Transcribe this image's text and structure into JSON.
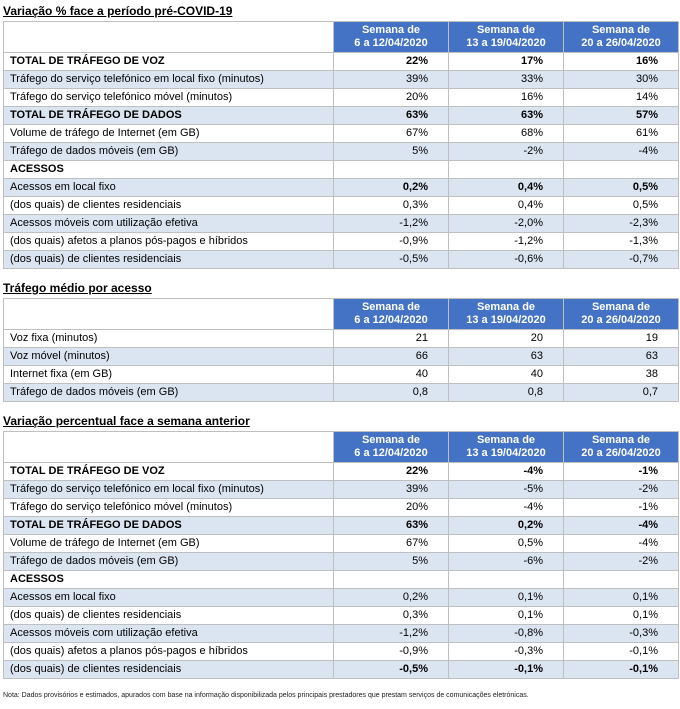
{
  "page": {
    "footnote": "Nota: Dados provisórios e estimados, apurados com base na informação disponibilizada pelos principais prestadores que prestam serviços de comunicações eletrónicas."
  },
  "colors": {
    "header_bg": "#4472C4",
    "header_text": "#FFFFFF",
    "row_alt_bg": "#DBE5F1",
    "border": "#BFBFBF"
  },
  "tables": [
    {
      "title": "Variação % face a período pré-COVID-19",
      "columns": [
        {
          "line1": "Semana de",
          "line2": "6 a 12/04/2020"
        },
        {
          "line1": "Semana de",
          "line2": "13 a 19/04/2020"
        },
        {
          "line1": "Semana de",
          "line2": "20 a 26/04/2020"
        }
      ],
      "rows": [
        {
          "label": "TOTAL DE TRÁFEGO DE VOZ",
          "values": [
            "22%",
            "17%",
            "16%"
          ],
          "label_bold": true,
          "values_bold": true
        },
        {
          "label": "Tráfego do serviço telefónico em local fixo (minutos)",
          "values": [
            "39%",
            "33%",
            "30%"
          ],
          "label_bold": false,
          "values_bold": false
        },
        {
          "label": "Tráfego do serviço telefónico móvel (minutos)",
          "values": [
            "20%",
            "16%",
            "14%"
          ],
          "label_bold": false,
          "values_bold": false
        },
        {
          "label": "TOTAL DE TRÁFEGO DE DADOS",
          "values": [
            "63%",
            "63%",
            "57%"
          ],
          "label_bold": true,
          "values_bold": true
        },
        {
          "label": "Volume de tráfego de Internet (em GB)",
          "values": [
            "67%",
            "68%",
            "61%"
          ],
          "label_bold": false,
          "values_bold": false
        },
        {
          "label": "Tráfego de dados móveis (em GB)",
          "values": [
            "5%",
            "-2%",
            "-4%"
          ],
          "label_bold": false,
          "values_bold": false
        },
        {
          "label": "ACESSOS",
          "values": [
            "",
            "",
            ""
          ],
          "label_bold": true,
          "values_bold": false
        },
        {
          "label": "Acessos em local fixo",
          "values": [
            "0,2%",
            "0,4%",
            "0,5%"
          ],
          "label_bold": false,
          "values_bold": true
        },
        {
          "label": "(dos quais) de clientes residenciais",
          "values": [
            "0,3%",
            "0,4%",
            "0,5%"
          ],
          "label_bold": false,
          "values_bold": false
        },
        {
          "label": "Acessos móveis com utilização efetiva",
          "values": [
            "-1,2%",
            "-2,0%",
            "-2,3%"
          ],
          "label_bold": false,
          "values_bold": false
        },
        {
          "label": "(dos quais) afetos a planos pós-pagos e híbridos",
          "values": [
            "-0,9%",
            "-1,2%",
            "-1,3%"
          ],
          "label_bold": false,
          "values_bold": false
        },
        {
          "label": "(dos quais) de clientes residenciais",
          "values": [
            "-0,5%",
            "-0,6%",
            "-0,7%"
          ],
          "label_bold": false,
          "values_bold": false
        }
      ]
    },
    {
      "title": "Tráfego médio por acesso",
      "columns": [
        {
          "line1": "Semana de",
          "line2": "6 a 12/04/2020"
        },
        {
          "line1": "Semana de",
          "line2": "13 a 19/04/2020"
        },
        {
          "line1": "Semana de",
          "line2": "20 a 26/04/2020"
        }
      ],
      "rows": [
        {
          "label": "Voz fixa (minutos)",
          "values": [
            "21",
            "20",
            "19"
          ],
          "label_bold": false,
          "values_bold": false
        },
        {
          "label": "Voz móvel (minutos)",
          "values": [
            "66",
            "63",
            "63"
          ],
          "label_bold": false,
          "values_bold": false
        },
        {
          "label": "Internet fixa (em GB)",
          "values": [
            "40",
            "40",
            "38"
          ],
          "label_bold": false,
          "values_bold": false
        },
        {
          "label": "Tráfego de dados móveis (em GB)",
          "values": [
            "0,8",
            "0,8",
            "0,7"
          ],
          "label_bold": false,
          "values_bold": false
        }
      ]
    },
    {
      "title": "Variação percentual face a semana anterior",
      "columns": [
        {
          "line1": "Semana de",
          "line2": "6 a 12/04/2020"
        },
        {
          "line1": "Semana de",
          "line2": "13 a 19/04/2020"
        },
        {
          "line1": "Semana de",
          "line2": "20 a 26/04/2020"
        }
      ],
      "rows": [
        {
          "label": "TOTAL DE TRÁFEGO DE VOZ",
          "values": [
            "22%",
            "-4%",
            "-1%"
          ],
          "label_bold": true,
          "values_bold": true
        },
        {
          "label": "Tráfego do serviço telefónico em local fixo (minutos)",
          "values": [
            "39%",
            "-5%",
            "-2%"
          ],
          "label_bold": false,
          "values_bold": false
        },
        {
          "label": "Tráfego do serviço telefónico móvel (minutos)",
          "values": [
            "20%",
            "-4%",
            "-1%"
          ],
          "label_bold": false,
          "values_bold": false
        },
        {
          "label": "TOTAL DE TRÁFEGO DE DADOS",
          "values": [
            "63%",
            "0,2%",
            "-4%"
          ],
          "label_bold": true,
          "values_bold": true
        },
        {
          "label": "Volume de tráfego de Internet (em GB)",
          "values": [
            "67%",
            "0,5%",
            "-4%"
          ],
          "label_bold": false,
          "values_bold": false
        },
        {
          "label": "Tráfego de dados móveis (em GB)",
          "values": [
            "5%",
            "-6%",
            "-2%"
          ],
          "label_bold": false,
          "values_bold": false
        },
        {
          "label": "ACESSOS",
          "values": [
            "",
            "",
            ""
          ],
          "label_bold": true,
          "values_bold": false
        },
        {
          "label": "Acessos em local fixo",
          "values": [
            "0,2%",
            "0,1%",
            "0,1%"
          ],
          "label_bold": false,
          "values_bold": false
        },
        {
          "label": "(dos quais) de clientes residenciais",
          "values": [
            "0,3%",
            "0,1%",
            "0,1%"
          ],
          "label_bold": false,
          "values_bold": false
        },
        {
          "label": "Acessos móveis com utilização efetiva",
          "values": [
            "-1,2%",
            "-0,8%",
            "-0,3%"
          ],
          "label_bold": false,
          "values_bold": false
        },
        {
          "label": "(dos quais) afetos a planos pós-pagos e híbridos",
          "values": [
            "-0,9%",
            "-0,3%",
            "-0,1%"
          ],
          "label_bold": false,
          "values_bold": false
        },
        {
          "label": "(dos quais) de clientes residenciais",
          "values": [
            "-0,5%",
            "-0,1%",
            "-0,1%"
          ],
          "label_bold": false,
          "values_bold": true
        }
      ]
    }
  ]
}
